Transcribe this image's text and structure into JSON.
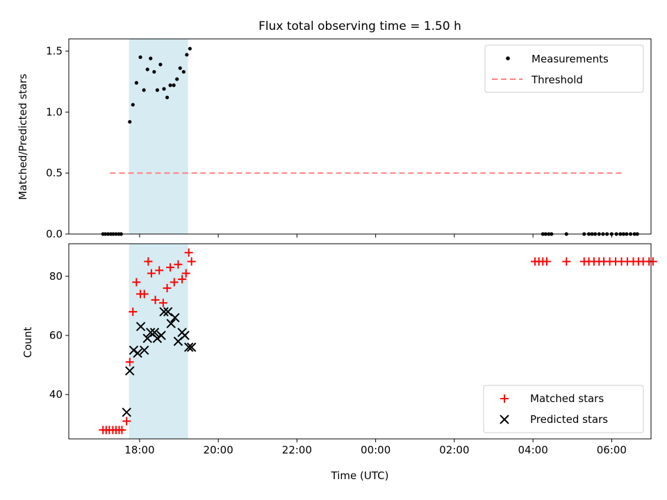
{
  "chart_data": [
    {
      "type": "scatter",
      "title": "Flux total observing time = 1.50 h",
      "xlabel": "",
      "ylabel": "Matched/Predicted stars",
      "xlim": [
        -7.8,
        7.0
      ],
      "ylim": [
        0.0,
        1.6
      ],
      "yticks": [
        0.0,
        0.5,
        1.0,
        1.5
      ],
      "ytick_labels": [
        "0.0",
        "0.5",
        "1.0",
        "1.5"
      ],
      "xticks": [
        -6,
        -4,
        -2,
        0,
        2,
        4,
        6
      ],
      "shaded_span": [
        -6.27,
        -4.77
      ],
      "legend": {
        "position": "upper right",
        "entries": [
          "Measurements",
          "Threshold"
        ]
      },
      "series": [
        {
          "name": "Measurements",
          "marker": "dot",
          "color": "#000000",
          "x": [
            -6.93,
            -6.87,
            -6.8,
            -6.73,
            -6.67,
            -6.6,
            -6.53,
            -6.47,
            -6.25,
            -6.17,
            -6.08,
            -5.98,
            -5.89,
            -5.8,
            -5.72,
            -5.63,
            -5.55,
            -5.47,
            -5.38,
            -5.3,
            -5.22,
            -5.13,
            -5.05,
            -4.97,
            -4.88,
            -4.8,
            -4.72,
            4.25,
            4.32,
            4.4,
            4.47,
            4.85,
            5.3,
            5.42,
            5.5,
            5.58,
            5.68,
            5.78,
            5.88,
            6.0,
            6.12,
            6.22,
            6.3,
            6.38,
            6.48,
            6.58,
            6.65
          ],
          "y": [
            0,
            0,
            0,
            0,
            0,
            0,
            0,
            0,
            0.92,
            1.06,
            1.24,
            1.45,
            1.18,
            1.35,
            1.44,
            1.33,
            1.18,
            1.39,
            1.19,
            1.12,
            1.22,
            1.22,
            1.27,
            1.36,
            1.33,
            1.47,
            1.52,
            0,
            0,
            0,
            0,
            0,
            0,
            0,
            0,
            0,
            0,
            0,
            0,
            0,
            0,
            0,
            0,
            0,
            0,
            0,
            0
          ]
        },
        {
          "name": "Threshold",
          "style": "dashed",
          "color": "#ff7f7f",
          "x": [
            -6.75,
            6.3
          ],
          "y": [
            0.5,
            0.5
          ]
        }
      ]
    },
    {
      "type": "scatter",
      "xlabel": "Time (UTC)",
      "ylabel": "Count",
      "xlim": [
        -7.8,
        7.0
      ],
      "ylim": [
        25,
        91
      ],
      "yticks": [
        40,
        60,
        80
      ],
      "ytick_labels": [
        "40",
        "60",
        "80"
      ],
      "xticks": [
        -6,
        -4,
        -2,
        0,
        2,
        4,
        6
      ],
      "xtick_labels": [
        "18:00",
        "20:00",
        "22:00",
        "00:00",
        "02:00",
        "04:00",
        "06:00"
      ],
      "shaded_span": [
        -6.27,
        -4.77
      ],
      "legend": {
        "position": "lower right",
        "entries": [
          "Matched stars",
          "Predicted stars"
        ]
      },
      "series": [
        {
          "name": "Matched stars",
          "marker": "plus",
          "color": "#ff0000",
          "x": [
            -6.93,
            -6.85,
            -6.77,
            -6.68,
            -6.6,
            -6.52,
            -6.45,
            -6.33,
            -6.25,
            -6.17,
            -6.08,
            -5.98,
            -5.88,
            -5.78,
            -5.7,
            -5.6,
            -5.5,
            -5.4,
            -5.3,
            -5.22,
            -5.12,
            -5.02,
            -4.92,
            -4.82,
            -4.75,
            4.05,
            4.15,
            4.25,
            4.35,
            4.85,
            5.3,
            5.42,
            5.55,
            5.68,
            5.8,
            5.95,
            6.1,
            6.25,
            6.4,
            6.55,
            6.68,
            6.8,
            6.95,
            7.05
          ],
          "y": [
            28,
            28,
            28,
            28,
            28,
            28,
            28,
            31,
            51,
            68,
            78,
            74,
            74,
            85,
            81,
            72,
            82,
            71,
            76,
            83,
            78,
            84,
            79,
            81,
            88,
            85,
            85,
            85,
            85,
            85,
            85,
            85,
            85,
            85,
            85,
            85,
            85,
            85,
            85,
            85,
            85,
            85,
            85,
            85
          ],
          "extra_point": {
            "x": -4.68,
            "y": 85
          }
        },
        {
          "name": "Predicted stars",
          "marker": "x",
          "color": "#000000",
          "x": [
            -6.33,
            -6.25,
            -6.15,
            -6.05,
            -5.97,
            -5.88,
            -5.8,
            -5.72,
            -5.62,
            -5.55,
            -5.45,
            -5.38,
            -5.28,
            -5.2,
            -5.1,
            -5.02,
            -4.92,
            -4.85,
            -4.75,
            -4.68
          ],
          "y": [
            34,
            48,
            55,
            54,
            63,
            55,
            59,
            61,
            61,
            59,
            60,
            68,
            68,
            64,
            66,
            58,
            61,
            60,
            56,
            56
          ]
        }
      ]
    }
  ]
}
